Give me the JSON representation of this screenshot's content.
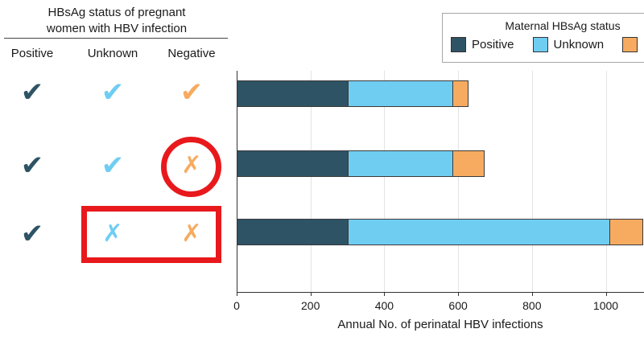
{
  "panel": {
    "title_lines": [
      "HBsAg status of pregnant",
      "women with HBV infection"
    ],
    "columns": [
      {
        "id": "positive",
        "label": "Positive"
      },
      {
        "id": "unknown",
        "label": "Unknown"
      },
      {
        "id": "negative",
        "label": "Negative"
      }
    ],
    "rows": [
      {
        "marks": [
          "check",
          "check",
          "check"
        ],
        "annotation": null
      },
      {
        "marks": [
          "check",
          "check",
          "x"
        ],
        "annotation": "red-circle-on-negative"
      },
      {
        "marks": [
          "check",
          "x",
          "x"
        ],
        "annotation": "red-box-around-unknown-negative"
      }
    ]
  },
  "icons": {
    "check": "✔",
    "x": "✗"
  },
  "chart_data": {
    "type": "bar",
    "orientation": "horizontal",
    "categories": [
      "Positive ✔ / Unknown ✔ / Negative ✔",
      "Positive ✔ / Unknown ✔ / Negative ✗",
      "Positive ✔ / Unknown ✗ / Negative ✗"
    ],
    "series": [
      {
        "name": "Positive",
        "color": "#2e5365",
        "values": [
          300,
          300,
          300
        ]
      },
      {
        "name": "Unknown",
        "color": "#6fcdf2",
        "values": [
          285,
          285,
          710
        ]
      },
      {
        "name": "Negative",
        "color": "#f7ab60",
        "values": [
          40,
          85,
          90
        ]
      }
    ],
    "totals": [
      625,
      670,
      1100
    ],
    "xlabel": "Annual No. of perinatal HBV infections",
    "xticks": [
      0,
      200,
      400,
      600,
      800,
      1000
    ],
    "xlim": [
      0,
      1104
    ],
    "grid": true,
    "legend": {
      "title": "Maternal HBsAg status",
      "position": "top-right",
      "cut_off_at_right_edge": true
    }
  },
  "colors": {
    "annotation_red": "#e8191c",
    "axis": "#333333",
    "gridline": "#e3e3e3",
    "bar_border": "#3a3a3a",
    "text": "#1a1a1a",
    "legend_border": "#a6a6a6"
  }
}
